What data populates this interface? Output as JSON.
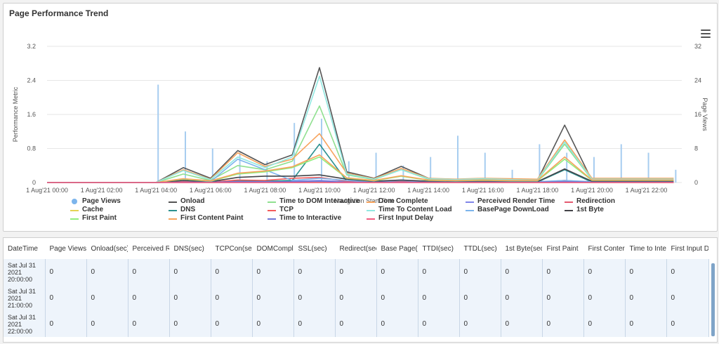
{
  "panel": {
    "title": "Page Performance Trend"
  },
  "chart_data": {
    "type": "line",
    "title": "",
    "xlabel": "Navigation Start Time",
    "ylabel": "Performance Metric",
    "y2label": "Page Views",
    "ylim": [
      0,
      3.2
    ],
    "y2lim": [
      0,
      32
    ],
    "yticks": [
      "0",
      "0.8",
      "1.6",
      "2.4",
      "3.2"
    ],
    "y2ticks": [
      "0",
      "8",
      "16",
      "24",
      "32"
    ],
    "xticks": [
      "1 Aug'21 00:00",
      "1 Aug'21 02:00",
      "1 Aug'21 04:00",
      "1 Aug'21 06:00",
      "1 Aug'21 08:00",
      "1 Aug'21 10:00",
      "1 Aug'21 12:00",
      "1 Aug'21 14:00",
      "1 Aug'21 16:00",
      "1 Aug'21 18:00",
      "1 Aug'21 20:00",
      "1 Aug'21 22:00"
    ],
    "x_hours": [
      0,
      1,
      2,
      3,
      4,
      5,
      6,
      7,
      8,
      9,
      10,
      11,
      12,
      13,
      14,
      15,
      16,
      17,
      18,
      19,
      20,
      21,
      22,
      23
    ],
    "page_views": [
      0,
      0,
      0,
      0,
      23,
      12,
      8,
      7,
      5,
      14,
      15,
      5,
      7,
      4,
      6,
      11,
      7,
      3,
      9,
      7,
      6,
      9,
      7,
      3
    ],
    "series": [
      {
        "name": "Onload",
        "color": "#555555",
        "values": [
          0,
          0,
          0,
          0,
          0,
          0.35,
          0.1,
          0.75,
          0.42,
          0.65,
          2.7,
          0.25,
          0.1,
          0.38,
          0.1,
          0.05,
          0.08,
          0.06,
          0.05,
          1.35,
          0.05,
          0.05,
          0.06,
          0.06
        ]
      },
      {
        "name": "Time to DOM Interactive",
        "color": "#90e090",
        "values": [
          0,
          0,
          0,
          0,
          0,
          0.2,
          0.05,
          0.4,
          0.3,
          0.5,
          1.8,
          0.18,
          0.07,
          0.3,
          0.08,
          0.06,
          0.08,
          0.06,
          0.05,
          0.9,
          0.07,
          0.07,
          0.08,
          0.08
        ]
      },
      {
        "name": "Dom Complete",
        "color": "#f7a35c",
        "values": [
          0,
          0,
          0,
          0,
          0,
          0.3,
          0.08,
          0.7,
          0.38,
          0.55,
          1.15,
          0.22,
          0.09,
          0.33,
          0.1,
          0.08,
          0.1,
          0.09,
          0.08,
          1.0,
          0.1,
          0.1,
          0.1,
          0.1
        ]
      },
      {
        "name": "Perceived Render Time",
        "color": "#8085e9",
        "values": [
          0,
          0,
          0,
          0,
          0,
          0.02,
          0.01,
          0.03,
          0.02,
          0.03,
          0.05,
          0.02,
          0.01,
          0.02,
          0.01,
          0.01,
          0.01,
          0.01,
          0.01,
          0.03,
          0.01,
          0.01,
          0.01,
          0.01
        ]
      },
      {
        "name": "Redirection",
        "color": "#e4596f",
        "values": [
          0,
          0,
          0,
          0,
          0,
          0,
          0,
          0,
          0,
          0,
          0,
          0,
          0,
          0,
          0,
          0,
          0,
          0,
          0,
          0,
          0,
          0,
          0,
          0
        ]
      },
      {
        "name": "Cache",
        "color": "#e4d354",
        "values": [
          0,
          0,
          0,
          0,
          0,
          0.01,
          0,
          0.01,
          0.01,
          0.01,
          0.02,
          0.01,
          0,
          0.01,
          0,
          0,
          0,
          0,
          0,
          0.01,
          0,
          0,
          0,
          0
        ]
      },
      {
        "name": "DNS",
        "color": "#2b908f",
        "values": [
          0,
          0,
          0,
          0,
          0,
          0.02,
          0.01,
          0.05,
          0.03,
          0.05,
          0.9,
          0.03,
          0.01,
          0.03,
          0.01,
          0.01,
          0.01,
          0.01,
          0.01,
          0.3,
          0.01,
          0.01,
          0.01,
          0.01
        ]
      },
      {
        "name": "TCP",
        "color": "#f45b5b",
        "values": [
          0,
          0,
          0,
          0,
          0,
          0.03,
          0.01,
          0.06,
          0.05,
          0.1,
          0.12,
          0.03,
          0.01,
          0.03,
          0.01,
          0.01,
          0.01,
          0.01,
          0.01,
          0.05,
          0.01,
          0.01,
          0.01,
          0.01
        ]
      },
      {
        "name": "Time To Content Load",
        "color": "#91e8e1",
        "values": [
          0,
          0,
          0,
          0,
          0,
          0.28,
          0.07,
          0.6,
          0.35,
          0.6,
          2.5,
          0.2,
          0.08,
          0.3,
          0.09,
          0.07,
          0.09,
          0.07,
          0.06,
          0.95,
          0.08,
          0.08,
          0.08,
          0.08
        ]
      },
      {
        "name": "BasePage DownLoad",
        "color": "#7cb5ec",
        "values": [
          0,
          0,
          0,
          0,
          0,
          0.05,
          0.02,
          0.55,
          0.3,
          0.05,
          0.1,
          0.05,
          0.02,
          0.05,
          0.02,
          0.02,
          0.02,
          0.02,
          0.02,
          0.05,
          0.02,
          0.02,
          0.02,
          0.02
        ]
      },
      {
        "name": "1st Byte",
        "color": "#434348",
        "values": [
          0,
          0,
          0,
          0,
          0,
          0.05,
          0.02,
          0.12,
          0.15,
          0.15,
          0.18,
          0.08,
          0.03,
          0.06,
          0.03,
          0.03,
          0.03,
          0.03,
          0.02,
          0.32,
          0.03,
          0.03,
          0.03,
          0.03
        ]
      },
      {
        "name": "First Paint",
        "color": "#90ed7d",
        "values": [
          0,
          0,
          0,
          0,
          0,
          0.08,
          0.03,
          0.2,
          0.25,
          0.35,
          0.6,
          0.1,
          0.04,
          0.15,
          0.05,
          0.04,
          0.05,
          0.04,
          0.04,
          0.55,
          0.05,
          0.05,
          0.05,
          0.05
        ]
      },
      {
        "name": "First Content Paint",
        "color": "#f7a35c",
        "values": [
          0,
          0,
          0,
          0,
          0,
          0.09,
          0.04,
          0.22,
          0.27,
          0.37,
          0.65,
          0.11,
          0.05,
          0.16,
          0.06,
          0.05,
          0.06,
          0.05,
          0.05,
          0.6,
          0.06,
          0.06,
          0.06,
          0.06
        ]
      },
      {
        "name": "Time to Interactive",
        "color": "#6f76d6",
        "values": [
          0,
          0,
          0,
          0,
          0,
          0.01,
          0.01,
          0.02,
          0.02,
          0.02,
          0.03,
          0.01,
          0.01,
          0.01,
          0.01,
          0.01,
          0.01,
          0.01,
          0.01,
          0.02,
          0.01,
          0.01,
          0.01,
          0.01
        ]
      },
      {
        "name": "First Input Delay",
        "color": "#f15c80",
        "values": [
          0,
          0,
          0,
          0,
          0,
          0,
          0,
          0,
          0,
          0,
          0,
          0,
          0,
          0,
          0,
          0,
          0,
          0,
          0,
          0,
          0,
          0,
          0,
          0
        ]
      }
    ],
    "grid": true,
    "legend_position": "bottom"
  },
  "legend": [
    {
      "label": "Page Views",
      "color": "#7cb5ec",
      "kind": "dot"
    },
    {
      "label": "Onload",
      "color": "#555555",
      "kind": "line"
    },
    {
      "label": "Time to DOM Interactive",
      "color": "#90e090",
      "kind": "line"
    },
    {
      "label": "Dom Complete",
      "color": "#f7a35c",
      "kind": "line"
    },
    {
      "label": "Perceived Render Time",
      "color": "#8085e9",
      "kind": "line"
    },
    {
      "label": "Redirection",
      "color": "#e4596f",
      "kind": "line"
    },
    {
      "label": "Cache",
      "color": "#e4d354",
      "kind": "line"
    },
    {
      "label": "DNS",
      "color": "#2b908f",
      "kind": "line"
    },
    {
      "label": "TCP",
      "color": "#f45b5b",
      "kind": "line"
    },
    {
      "label": "Time To Content Load",
      "color": "#91e8e1",
      "kind": "line"
    },
    {
      "label": "BasePage DownLoad",
      "color": "#7cb5ec",
      "kind": "line"
    },
    {
      "label": "1st Byte",
      "color": "#434348",
      "kind": "line"
    },
    {
      "label": "First Paint",
      "color": "#90ed7d",
      "kind": "line"
    },
    {
      "label": "First Content Paint",
      "color": "#f7a35c",
      "kind": "line"
    },
    {
      "label": "Time to Interactive",
      "color": "#6f76d6",
      "kind": "line"
    },
    {
      "label": "First Input Delay",
      "color": "#f15c80",
      "kind": "line"
    }
  ],
  "table": {
    "headers": [
      "DateTime",
      "Page Views",
      "Onload(sec)",
      "Perceived R",
      "DNS(sec)",
      "TCPCon(sec",
      "DOMCompl",
      "SSL(sec)",
      "Redirect(sec",
      "Base Page(s",
      "TTDI(sec)",
      "TTDL(sec)",
      "1st Byte(sec",
      "First Paint",
      "First Conter",
      "Time to Inte",
      "First Input D"
    ],
    "rows": [
      {
        "datetime": "Sat Jul 31 2021 20:00:00",
        "values": [
          "0",
          "0",
          "0",
          "0",
          "0",
          "0",
          "0",
          "0",
          "0",
          "0",
          "0",
          "0",
          "0",
          "0",
          "0",
          "0"
        ]
      },
      {
        "datetime": "Sat Jul 31 2021 21:00:00",
        "values": [
          "0",
          "0",
          "0",
          "0",
          "0",
          "0",
          "0",
          "0",
          "0",
          "0",
          "0",
          "0",
          "0",
          "0",
          "0",
          "0"
        ]
      },
      {
        "datetime": "Sat Jul 31 2021 22:00:00",
        "values": [
          "0",
          "0",
          "0",
          "0",
          "0",
          "0",
          "0",
          "0",
          "0",
          "0",
          "0",
          "0",
          "0",
          "0",
          "0",
          "0"
        ]
      }
    ]
  }
}
